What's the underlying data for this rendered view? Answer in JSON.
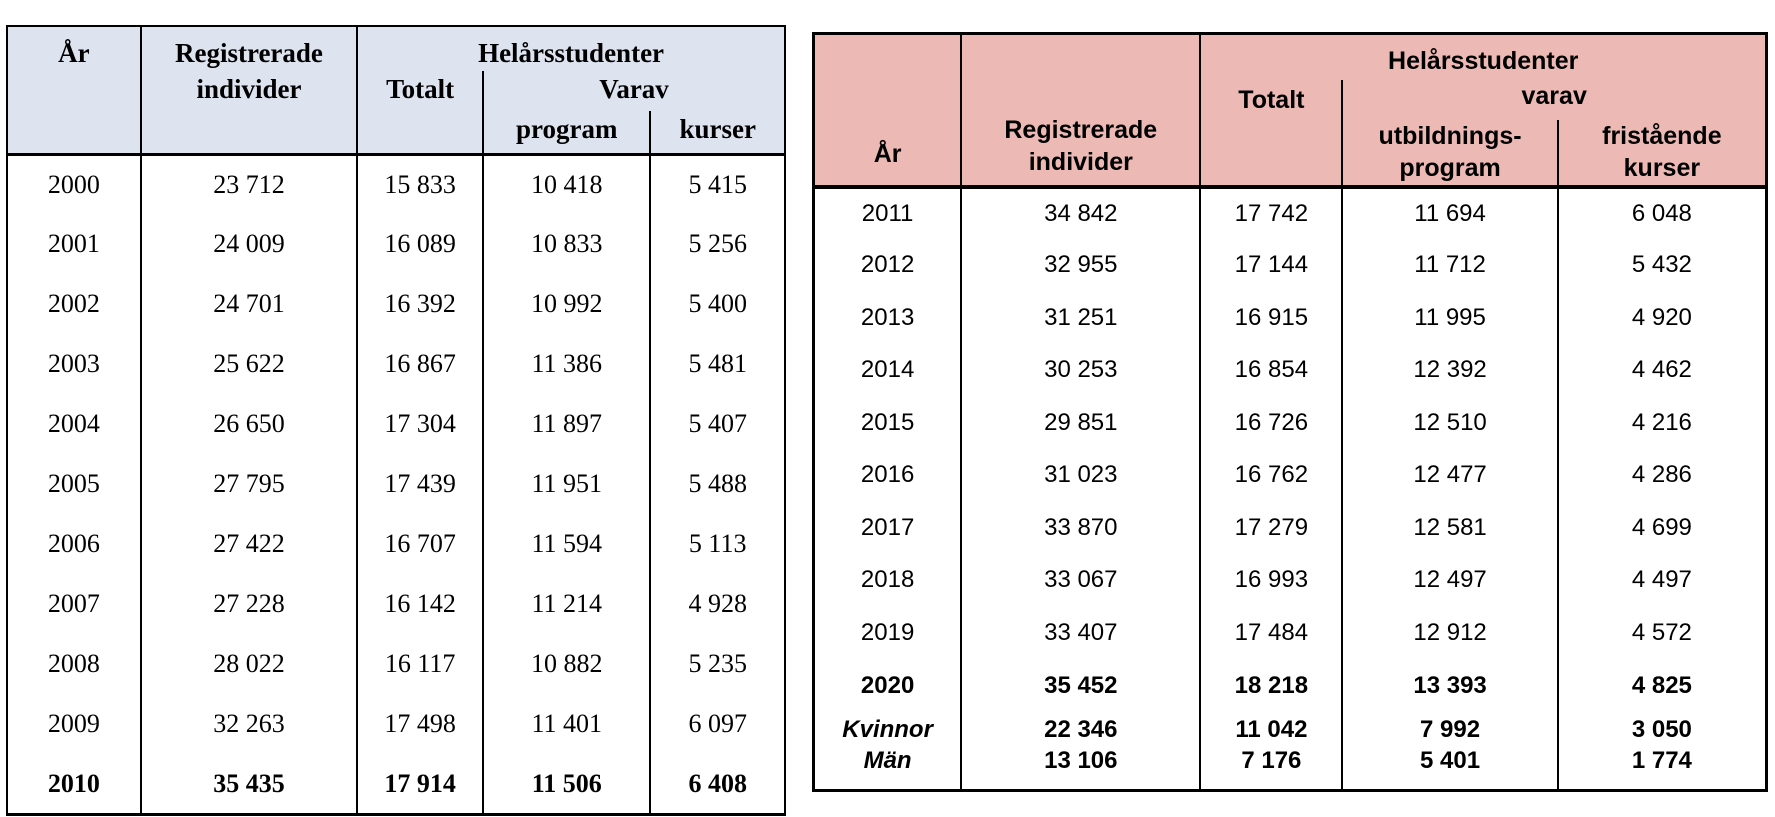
{
  "page": {
    "background": "#ffffff"
  },
  "left_table": {
    "style": {
      "header_bg": "#dde3ef",
      "border_color": "#000000"
    },
    "header": {
      "year": "År",
      "registered": "Registrerade individer",
      "group": "Helårsstudenter",
      "total": "Totalt",
      "varav": "Varav",
      "program": "program",
      "kurser": "kurser"
    },
    "rows": [
      {
        "year": "2000",
        "registered": "23 712",
        "total": "15 833",
        "program": "10 418",
        "kurser": "5 415",
        "bold": false
      },
      {
        "year": "2001",
        "registered": "24 009",
        "total": "16 089",
        "program": "10 833",
        "kurser": "5 256",
        "bold": false
      },
      {
        "year": "2002",
        "registered": "24 701",
        "total": "16 392",
        "program": "10 992",
        "kurser": "5 400",
        "bold": false
      },
      {
        "year": "2003",
        "registered": "25 622",
        "total": "16 867",
        "program": "11 386",
        "kurser": "5 481",
        "bold": false
      },
      {
        "year": "2004",
        "registered": "26 650",
        "total": "17 304",
        "program": "11 897",
        "kurser": "5 407",
        "bold": false
      },
      {
        "year": "2005",
        "registered": "27 795",
        "total": "17 439",
        "program": "11 951",
        "kurser": "5 488",
        "bold": false
      },
      {
        "year": "2006",
        "registered": "27 422",
        "total": "16 707",
        "program": "11 594",
        "kurser": "5 113",
        "bold": false
      },
      {
        "year": "2007",
        "registered": "27 228",
        "total": "16 142",
        "program": "11 214",
        "kurser": "4 928",
        "bold": false
      },
      {
        "year": "2008",
        "registered": "28 022",
        "total": "16 117",
        "program": "10 882",
        "kurser": "5 235",
        "bold": false
      },
      {
        "year": "2009",
        "registered": "32 263",
        "total": "17 498",
        "program": "11 401",
        "kurser": "6 097",
        "bold": false
      },
      {
        "year": "2010",
        "registered": "35 435",
        "total": "17 914",
        "program": "11 506",
        "kurser": "6 408",
        "bold": true
      }
    ]
  },
  "right_table": {
    "style": {
      "header_bg": "#ecb9b5",
      "border_color": "#000000"
    },
    "header": {
      "year": "År",
      "registered": "Registrerade individer",
      "group": "Helårsstudenter",
      "total": "Totalt",
      "varav": "varav",
      "program_line1": "utbildnings-",
      "program_line2": "program",
      "kurser_line1": "fristående",
      "kurser_line2": "kurser"
    },
    "rows": [
      {
        "year": "2011",
        "registered": "34 842",
        "total": "17 742",
        "program": "11 694",
        "kurser": "6 048",
        "bold": false,
        "sex": false
      },
      {
        "year": "2012",
        "registered": "32 955",
        "total": "17 144",
        "program": "11 712",
        "kurser": "5 432",
        "bold": false,
        "sex": false
      },
      {
        "year": "2013",
        "registered": "31 251",
        "total": "16 915",
        "program": "11 995",
        "kurser": "4 920",
        "bold": false,
        "sex": false
      },
      {
        "year": "2014",
        "registered": "30 253",
        "total": "16 854",
        "program": "12 392",
        "kurser": "4 462",
        "bold": false,
        "sex": false
      },
      {
        "year": "2015",
        "registered": "29 851",
        "total": "16 726",
        "program": "12 510",
        "kurser": "4 216",
        "bold": false,
        "sex": false
      },
      {
        "year": "2016",
        "registered": "31 023",
        "total": "16 762",
        "program": "12 477",
        "kurser": "4 286",
        "bold": false,
        "sex": false
      },
      {
        "year": "2017",
        "registered": "33 870",
        "total": "17 279",
        "program": "12 581",
        "kurser": "4 699",
        "bold": false,
        "sex": false
      },
      {
        "year": "2018",
        "registered": "33 067",
        "total": "16 993",
        "program": "12 497",
        "kurser": "4 497",
        "bold": false,
        "sex": false
      },
      {
        "year": "2019",
        "registered": "33 407",
        "total": "17 484",
        "program": "12 912",
        "kurser": "4 572",
        "bold": false,
        "sex": false
      },
      {
        "year": "2020",
        "registered": "35 452",
        "total": "18 218",
        "program": "13 393",
        "kurser": "4 825",
        "bold": true,
        "sex": false
      },
      {
        "year": "Kvinnor",
        "registered": "22 346",
        "total": "11 042",
        "program": "7 992",
        "kurser": "3 050",
        "bold": true,
        "sex": true
      },
      {
        "year": "Män",
        "registered": "13 106",
        "total": "7 176",
        "program": "5 401",
        "kurser": "1 774",
        "bold": true,
        "sex": true,
        "last": true
      }
    ]
  }
}
